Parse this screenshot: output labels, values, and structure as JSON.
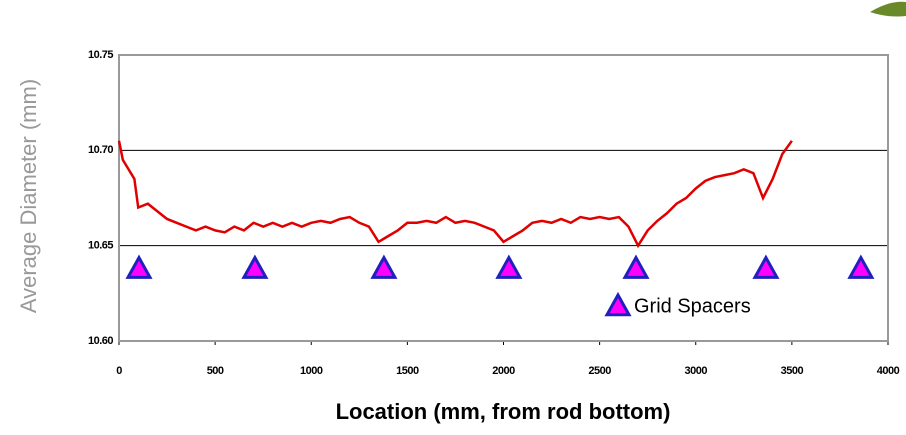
{
  "chart_data": {
    "type": "line",
    "ylabel": "Average Diameter (mm)",
    "xlabel": "Location (mm, from rod bottom)",
    "xlim": [
      0,
      4000
    ],
    "xticks": [
      0,
      500,
      1000,
      1500,
      2000,
      2500,
      3000,
      3500,
      4000
    ],
    "ylim": [
      10.6,
      10.75
    ],
    "yticks": [
      {
        "value": 10.6,
        "label": "10.60"
      },
      {
        "value": 10.65,
        "label": "10.65"
      },
      {
        "value": 10.7,
        "label": "10.70"
      },
      10.75
    ],
    "grid": true,
    "legend": "lower right",
    "series": [
      {
        "type": "line",
        "color": "#e00000",
        "x": [
          0,
          20,
          50,
          80,
          100,
          150,
          200,
          250,
          300,
          350,
          400,
          450,
          500,
          550,
          600,
          650,
          700,
          750,
          800,
          850,
          900,
          950,
          1000,
          1050,
          1100,
          1150,
          1200,
          1250,
          1300,
          1350,
          1400,
          1450,
          1500,
          1550,
          1600,
          1650,
          1700,
          1750,
          1800,
          1850,
          1900,
          1950,
          2000,
          2050,
          2100,
          2150,
          2200,
          2250,
          2300,
          2350,
          2400,
          2450,
          2500,
          2550,
          2600,
          2650,
          2700,
          2750,
          2800,
          2850,
          2900,
          2950,
          3000,
          3050,
          3100,
          3150,
          3200,
          3250,
          3300,
          3350,
          3400,
          3450,
          3500
        ],
        "values": [
          10.705,
          10.695,
          10.69,
          10.685,
          10.67,
          10.672,
          10.668,
          10.664,
          10.662,
          10.66,
          10.658,
          10.66,
          10.658,
          10.657,
          10.66,
          10.658,
          10.662,
          10.66,
          10.662,
          10.66,
          10.662,
          10.66,
          10.662,
          10.663,
          10.662,
          10.664,
          10.665,
          10.662,
          10.66,
          10.652,
          10.655,
          10.658,
          10.662,
          10.662,
          10.663,
          10.662,
          10.665,
          10.662,
          10.663,
          10.662,
          10.66,
          10.658,
          10.652,
          10.655,
          10.658,
          10.662,
          10.663,
          10.662,
          10.664,
          10.662,
          10.665,
          10.664,
          10.665,
          10.664,
          10.665,
          10.66,
          10.65,
          10.658,
          10.663,
          10.667,
          10.672,
          10.675,
          10.68,
          10.684,
          10.686,
          10.687,
          10.688,
          10.69,
          10.688,
          10.675,
          10.685,
          10.698,
          10.705
        ]
      },
      {
        "type": "scatter",
        "name": "Grid Spacers",
        "color": "#ff00ff",
        "edge": "#2020c0",
        "x": [
          104,
          707,
          1378,
          2028,
          2689,
          3365,
          3859
        ],
        "values": [
          10.638,
          10.638,
          10.638,
          10.638,
          10.638,
          10.638,
          10.638
        ]
      }
    ]
  }
}
